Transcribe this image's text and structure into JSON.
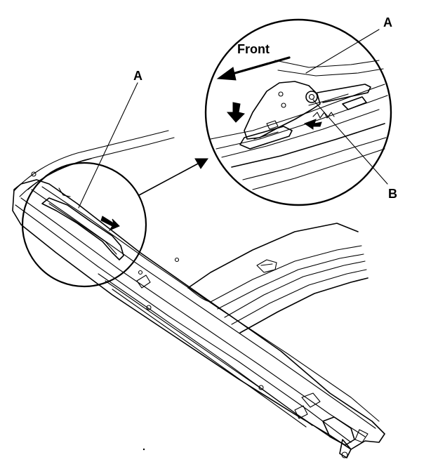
{
  "labels": {
    "front": "Front",
    "part_a_main": "A",
    "part_a_detail": "A",
    "part_b_detail": "B"
  },
  "colors": {
    "ink": "#000000",
    "paper": "#ffffff"
  }
}
